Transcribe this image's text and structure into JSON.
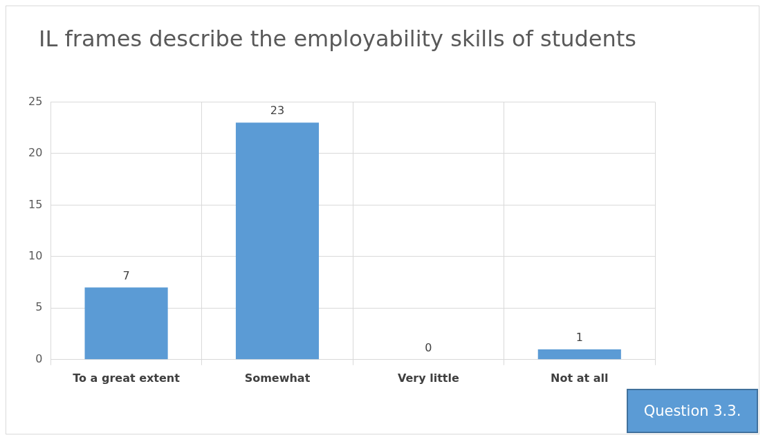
{
  "chart_data": {
    "type": "bar",
    "title": "IL frames describe the employability skills of students",
    "categories": [
      "To a great extent",
      "Somewhat",
      "Very little",
      "Not at all"
    ],
    "values": [
      7,
      23,
      0,
      1
    ],
    "color": "#5b9bd5",
    "ylim": [
      0,
      25
    ],
    "yticks": [
      0,
      5,
      10,
      15,
      20,
      25
    ],
    "grid": true,
    "data_labels": true,
    "annotations": [
      "Question 3.3."
    ]
  }
}
